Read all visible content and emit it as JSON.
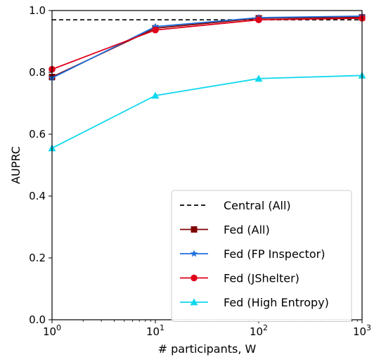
{
  "chart_data": {
    "type": "line",
    "xlabel": "# participants, W",
    "ylabel": "AUPRC",
    "x_scale": "log",
    "x": [
      1,
      10,
      100,
      1000
    ],
    "x_tick_labels": [
      {
        "base": "10",
        "exp": "0"
      },
      {
        "base": "10",
        "exp": "1"
      },
      {
        "base": "10",
        "exp": "2"
      },
      {
        "base": "10",
        "exp": "3"
      }
    ],
    "xlim": [
      1,
      1000
    ],
    "ylim": [
      0.0,
      1.0
    ],
    "y_ticks": [
      0.0,
      0.2,
      0.4,
      0.6,
      0.8,
      1.0
    ],
    "y_tick_labels": [
      "0.0",
      "0.2",
      "0.4",
      "0.6",
      "0.8",
      "1.0"
    ],
    "grid": false,
    "legend_position": "lower-right",
    "reference_lines": [
      {
        "name": "Central (All)",
        "y": 0.97,
        "color": "#000000",
        "style": "dashed"
      }
    ],
    "series": [
      {
        "name": "Fed (All)",
        "values": [
          0.785,
          0.943,
          0.975,
          0.978
        ],
        "color": "#800000",
        "marker": "square"
      },
      {
        "name": "Fed (FP Inspector)",
        "values": [
          0.782,
          0.948,
          0.977,
          0.982
        ],
        "color": "#1f6fdc",
        "marker": "star"
      },
      {
        "name": "Fed (JShelter)",
        "values": [
          0.81,
          0.937,
          0.97,
          0.975
        ],
        "color": "#e0001a",
        "marker": "circle"
      },
      {
        "name": "Fed (High Entropy)",
        "values": [
          0.555,
          0.725,
          0.78,
          0.79
        ],
        "color": "#11d8ee",
        "marker": "triangle"
      }
    ]
  }
}
